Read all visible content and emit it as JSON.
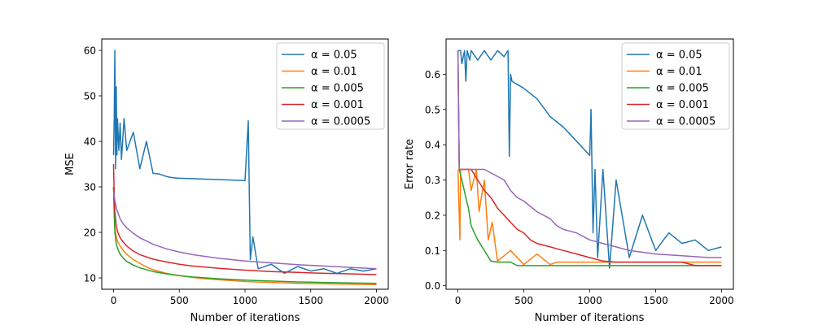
{
  "chart_data": [
    {
      "type": "line",
      "title": "",
      "xlabel": "Number of iterations",
      "ylabel": "MSE",
      "xlim": [
        -90,
        2090
      ],
      "ylim": [
        7.5,
        62.5
      ],
      "xticks": [
        0,
        500,
        1000,
        1500,
        2000
      ],
      "yticks": [
        10,
        20,
        30,
        40,
        50,
        60
      ],
      "grid": false,
      "legend": "top-right",
      "series": [
        {
          "name": "α = 0.05",
          "color": "#1f77b4",
          "x": [
            0,
            5,
            10,
            15,
            20,
            25,
            30,
            40,
            50,
            60,
            80,
            100,
            150,
            200,
            250,
            300,
            350,
            400,
            450,
            500,
            600,
            700,
            800,
            900,
            1000,
            1025,
            1040,
            1060,
            1100,
            1200,
            1300,
            1400,
            1500,
            1600,
            1700,
            1800,
            1900,
            2000
          ],
          "y": [
            37,
            45,
            60,
            34,
            52,
            37,
            45,
            38,
            44,
            36,
            45,
            38,
            42,
            34,
            40,
            33,
            32.8,
            32.3,
            32,
            31.9,
            31.8,
            31.7,
            31.6,
            31.5,
            31.4,
            44.5,
            14,
            19,
            12,
            13,
            11,
            12.5,
            11.5,
            12,
            11,
            12,
            11.5,
            12
          ]
        },
        {
          "name": "α = 0.01",
          "color": "#ff7f0e",
          "x": [
            0,
            5,
            10,
            20,
            30,
            50,
            75,
            100,
            150,
            200,
            250,
            300,
            400,
            500,
            600,
            700,
            800,
            900,
            1000,
            1200,
            1400,
            1600,
            1800,
            2000
          ],
          "y": [
            30,
            25,
            21,
            19,
            18,
            17,
            16,
            15.2,
            14,
            13.2,
            12.4,
            11.8,
            11,
            10.5,
            10.1,
            9.8,
            9.6,
            9.4,
            9.2,
            9,
            8.8,
            8.7,
            8.6,
            8.5
          ]
        },
        {
          "name": "α = 0.005",
          "color": "#2ca02c",
          "x": [
            0,
            5,
            10,
            20,
            30,
            50,
            75,
            100,
            150,
            200,
            300,
            400,
            500,
            600,
            800,
            1000,
            1200,
            1400,
            1600,
            1800,
            2000
          ],
          "y": [
            30,
            24,
            20,
            17.5,
            16.5,
            15.2,
            14.3,
            13.6,
            12.8,
            12.2,
            11.4,
            10.9,
            10.5,
            10.2,
            9.8,
            9.5,
            9.3,
            9.1,
            9,
            8.9,
            8.8
          ]
        },
        {
          "name": "α = 0.001",
          "color": "#d62728",
          "x": [
            0,
            5,
            10,
            20,
            30,
            50,
            75,
            100,
            150,
            200,
            300,
            400,
            500,
            600,
            800,
            1000,
            1200,
            1400,
            1600,
            1800,
            2000
          ],
          "y": [
            35,
            28,
            24.5,
            21.5,
            20.2,
            18.8,
            17.8,
            17,
            15.9,
            15.1,
            14.1,
            13.5,
            13,
            12.6,
            12.1,
            11.7,
            11.4,
            11.2,
            11,
            10.9,
            10.7
          ]
        },
        {
          "name": "α = 0.0005",
          "color": "#9467bd",
          "x": [
            0,
            5,
            10,
            20,
            30,
            50,
            75,
            100,
            150,
            200,
            300,
            400,
            500,
            600,
            800,
            1000,
            1200,
            1400,
            1600,
            1800,
            2000
          ],
          "y": [
            29,
            28,
            27,
            25.5,
            24.5,
            23,
            21.8,
            21,
            19.8,
            18.8,
            17.4,
            16.4,
            15.7,
            15.1,
            14.3,
            13.7,
            13.3,
            12.9,
            12.6,
            12.3,
            12
          ]
        }
      ]
    },
    {
      "type": "line",
      "title": "",
      "xlabel": "Number of iterations",
      "ylabel": "Error rate",
      "xlim": [
        -90,
        2090
      ],
      "ylim": [
        -0.01,
        0.7
      ],
      "xticks": [
        0,
        500,
        1000,
        1500,
        2000
      ],
      "yticks": [
        0.0,
        0.1,
        0.2,
        0.3,
        0.4,
        0.5,
        0.6
      ],
      "ytick_labels": [
        "0.0",
        "0.1",
        "0.2",
        "0.3",
        "0.4",
        "0.5",
        "0.6"
      ],
      "grid": false,
      "legend": "top-right",
      "series": [
        {
          "name": "α = 0.05",
          "color": "#1f77b4",
          "x": [
            0,
            20,
            30,
            50,
            60,
            70,
            90,
            100,
            150,
            200,
            250,
            300,
            350,
            380,
            390,
            400,
            410,
            500,
            600,
            700,
            800,
            900,
            1000,
            1010,
            1025,
            1040,
            1060,
            1100,
            1150,
            1200,
            1300,
            1400,
            1500,
            1600,
            1700,
            1800,
            1900,
            2000
          ],
          "y": [
            0.667,
            0.667,
            0.63,
            0.667,
            0.58,
            0.667,
            0.64,
            0.667,
            0.64,
            0.667,
            0.64,
            0.667,
            0.65,
            0.667,
            0.367,
            0.6,
            0.58,
            0.56,
            0.53,
            0.48,
            0.45,
            0.41,
            0.37,
            0.5,
            0.15,
            0.33,
            0.08,
            0.33,
            0.05,
            0.3,
            0.08,
            0.2,
            0.1,
            0.15,
            0.12,
            0.13,
            0.1,
            0.11
          ]
        },
        {
          "name": "α = 0.01",
          "color": "#ff7f0e",
          "x": [
            0,
            15,
            20,
            40,
            80,
            100,
            140,
            160,
            200,
            230,
            260,
            300,
            400,
            500,
            600,
            700,
            750,
            800,
            1000,
            1200,
            1500,
            1800,
            2000
          ],
          "y": [
            0.33,
            0.13,
            0.33,
            0.33,
            0.33,
            0.27,
            0.33,
            0.21,
            0.3,
            0.13,
            0.18,
            0.07,
            0.1,
            0.06,
            0.09,
            0.06,
            0.067,
            0.067,
            0.067,
            0.067,
            0.067,
            0.067,
            0.067
          ]
        },
        {
          "name": "α = 0.005",
          "color": "#2ca02c",
          "x": [
            0,
            10,
            30,
            60,
            80,
            100,
            150,
            200,
            250,
            300,
            400,
            450,
            550,
            650,
            800,
            1000,
            1200,
            1500,
            1800,
            2000
          ],
          "y": [
            0.667,
            0.33,
            0.3,
            0.25,
            0.22,
            0.17,
            0.13,
            0.1,
            0.07,
            0.067,
            0.067,
            0.057,
            0.057,
            0.057,
            0.057,
            0.057,
            0.057,
            0.057,
            0.057,
            0.057
          ]
        },
        {
          "name": "α = 0.001",
          "color": "#d62728",
          "x": [
            0,
            10,
            100,
            150,
            200,
            250,
            300,
            350,
            400,
            450,
            500,
            550,
            600,
            700,
            800,
            900,
            1000,
            1100,
            1200,
            1300,
            1500,
            1700,
            1800,
            2000
          ],
          "y": [
            0.667,
            0.33,
            0.33,
            0.3,
            0.27,
            0.25,
            0.22,
            0.2,
            0.18,
            0.16,
            0.15,
            0.13,
            0.12,
            0.11,
            0.1,
            0.09,
            0.08,
            0.07,
            0.067,
            0.067,
            0.067,
            0.067,
            0.057,
            0.057
          ]
        },
        {
          "name": "α = 0.0005",
          "color": "#9467bd",
          "x": [
            0,
            10,
            200,
            350,
            400,
            450,
            500,
            600,
            700,
            750,
            800,
            900,
            1000,
            1100,
            1200,
            1300,
            1500,
            1700,
            1900,
            2000
          ],
          "y": [
            0.667,
            0.33,
            0.33,
            0.3,
            0.27,
            0.25,
            0.24,
            0.21,
            0.19,
            0.17,
            0.16,
            0.15,
            0.13,
            0.12,
            0.11,
            0.1,
            0.09,
            0.085,
            0.08,
            0.08
          ]
        }
      ]
    }
  ]
}
